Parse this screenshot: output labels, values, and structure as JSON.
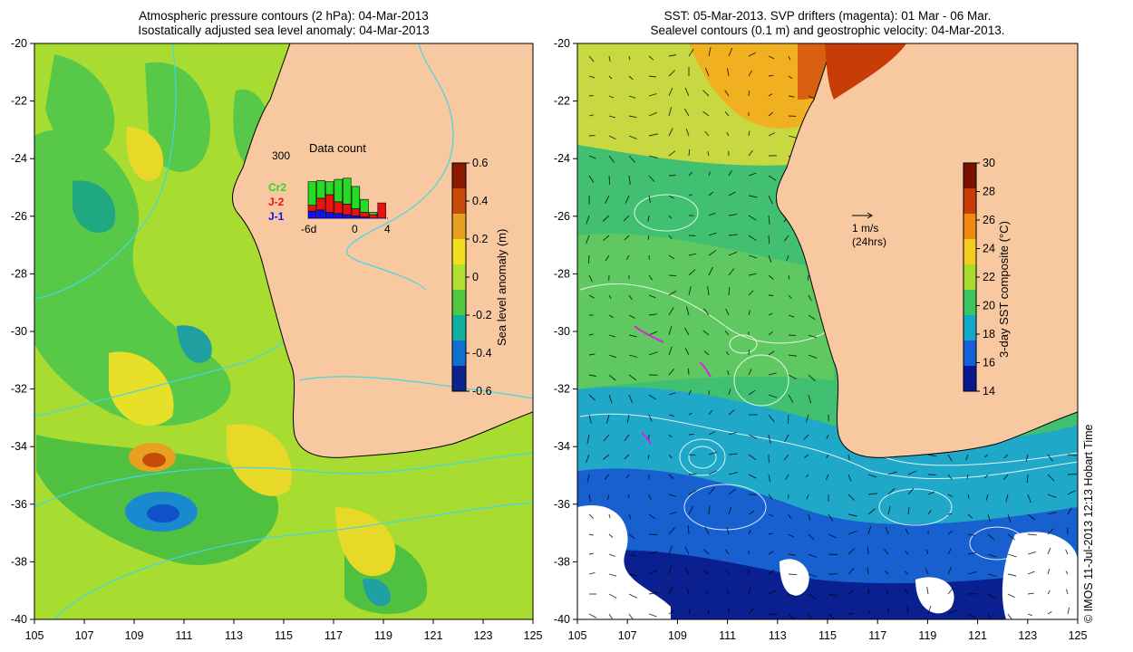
{
  "left_panel": {
    "title_line1": "Atmospheric pressure contours (2 hPa): 04-Mar-2013",
    "title_line2": "Isostatically adjusted sea level anomaly: 04-Mar-2013",
    "colorbar": {
      "label": "Sea level anomaly (m)",
      "ticks": [
        "0.6",
        "0.4",
        "0.2",
        "0",
        "-0.2",
        "-0.4",
        "-0.6"
      ],
      "colors": [
        "#8b1a00",
        "#c84b0a",
        "#e8a020",
        "#f2e020",
        "#b0e030",
        "#50c840",
        "#10b0a0",
        "#1070d0",
        "#0a2590"
      ]
    },
    "inset": {
      "title": "Data count",
      "y_max_label": "300",
      "x_labels": [
        "-6d",
        "0",
        "4"
      ],
      "legend": [
        {
          "label": "Cr2",
          "color": "#22dd22"
        },
        {
          "label": "J-2",
          "color": "#ee1111"
        },
        {
          "label": "J-1",
          "color": "#1111ee"
        }
      ]
    }
  },
  "right_panel": {
    "title_line1": "SST: 05-Mar-2013. SVP drifters (magenta): 01 Mar - 06 Mar.",
    "title_line2": "Sealevel contours (0.1 m) and geostrophic velocity: 04-Mar-2013.",
    "velocity_scale": {
      "label_line1": "1 m/s",
      "label_line2": "(24hrs)"
    },
    "colorbar": {
      "label": "3-day SST composite (°C)",
      "ticks": [
        "30",
        "28",
        "26",
        "24",
        "22",
        "20",
        "18",
        "16",
        "14"
      ],
      "colors": [
        "#7a1000",
        "#c83c08",
        "#f08a10",
        "#f4cc20",
        "#a8dc2c",
        "#3cc460",
        "#14a8c8",
        "#1460d8",
        "#0a1890"
      ]
    }
  },
  "axes": {
    "y_ticks": [
      "-20",
      "-22",
      "-24",
      "-26",
      "-28",
      "-30",
      "-32",
      "-34",
      "-36",
      "-38",
      "-40"
    ],
    "x_ticks": [
      "105",
      "107",
      "109",
      "111",
      "113",
      "115",
      "117",
      "119",
      "121",
      "123",
      "125"
    ]
  },
  "copyright": "© IMOS 11-Jul-2013 12:13 Hobart Time",
  "colors": {
    "land": "#f8c8a0",
    "coast": "#000000",
    "pressure_contour": "#40d8e8",
    "sst_contour": "#ffffff"
  }
}
